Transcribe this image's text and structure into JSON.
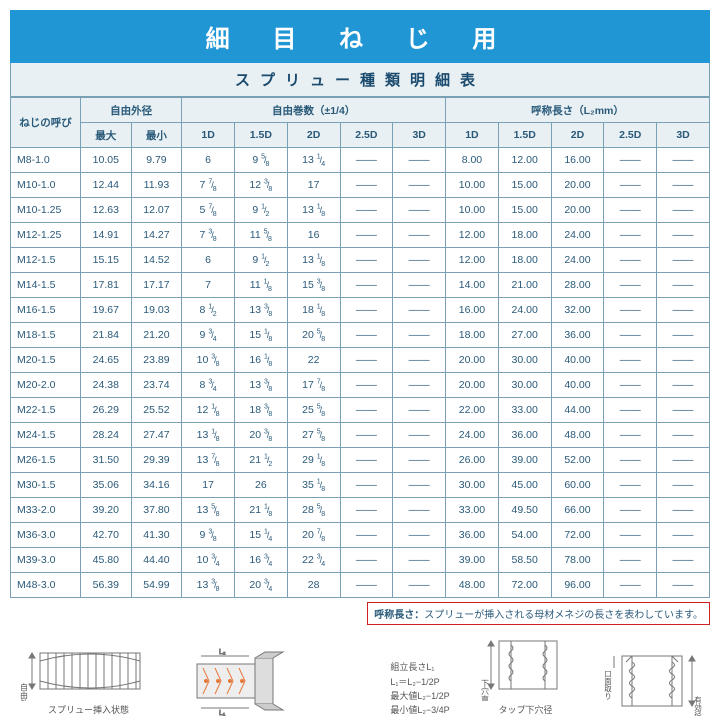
{
  "title": "細 目 ね じ 用",
  "subtitle": "スプリュー種類明細表",
  "headers": {
    "thread_name": "ねじの呼び",
    "free_od": "自由外径",
    "free_od_max": "最大",
    "free_od_min": "最小",
    "free_turns": "自由巻数（±1/4）",
    "nominal_len": "呼称長さ（L₂mm）",
    "d_labels": [
      "1D",
      "1.5D",
      "2D",
      "2.5D",
      "3D"
    ]
  },
  "rows": [
    {
      "name": "M8-1.0",
      "odmax": "10.05",
      "odmin": "9.79",
      "turns": [
        "6",
        "9 5/8",
        "13 1/4",
        "—",
        "—"
      ],
      "len": [
        "8.00",
        "12.00",
        "16.00",
        "—",
        "—"
      ]
    },
    {
      "name": "M10-1.0",
      "odmax": "12.44",
      "odmin": "11.93",
      "turns": [
        "7 7/8",
        "12 3/8",
        "17",
        "—",
        "—"
      ],
      "len": [
        "10.00",
        "15.00",
        "20.00",
        "—",
        "—"
      ]
    },
    {
      "name": "M10-1.25",
      "odmax": "12.63",
      "odmin": "12.07",
      "turns": [
        "5 7/8",
        "9 1/2",
        "13 1/8",
        "—",
        "—"
      ],
      "len": [
        "10.00",
        "15.00",
        "20.00",
        "—",
        "—"
      ]
    },
    {
      "name": "M12-1.25",
      "odmax": "14.91",
      "odmin": "14.27",
      "turns": [
        "7 3/8",
        "11 5/8",
        "16",
        "—",
        "—"
      ],
      "len": [
        "12.00",
        "18.00",
        "24.00",
        "—",
        "—"
      ]
    },
    {
      "name": "M12-1.5",
      "odmax": "15.15",
      "odmin": "14.52",
      "turns": [
        "6",
        "9 1/2",
        "13 1/8",
        "—",
        "—"
      ],
      "len": [
        "12.00",
        "18.00",
        "24.00",
        "—",
        "—"
      ]
    },
    {
      "name": "M14-1.5",
      "odmax": "17.81",
      "odmin": "17.17",
      "turns": [
        "7",
        "11 1/8",
        "15 3/8",
        "—",
        "—"
      ],
      "len": [
        "14.00",
        "21.00",
        "28.00",
        "—",
        "—"
      ]
    },
    {
      "name": "M16-1.5",
      "odmax": "19.67",
      "odmin": "19.03",
      "turns": [
        "8 1/2",
        "13 3/8",
        "18 1/8",
        "—",
        "—"
      ],
      "len": [
        "16.00",
        "24.00",
        "32.00",
        "—",
        "—"
      ]
    },
    {
      "name": "M18-1.5",
      "odmax": "21.84",
      "odmin": "21.20",
      "turns": [
        "9 3/4",
        "15 1/8",
        "20 5/8",
        "—",
        "—"
      ],
      "len": [
        "18.00",
        "27.00",
        "36.00",
        "—",
        "—"
      ]
    },
    {
      "name": "M20-1.5",
      "odmax": "24.65",
      "odmin": "23.89",
      "turns": [
        "10 3/8",
        "16 1/8",
        "22",
        "—",
        "—"
      ],
      "len": [
        "20.00",
        "30.00",
        "40.00",
        "—",
        "—"
      ]
    },
    {
      "name": "M20-2.0",
      "odmax": "24.38",
      "odmin": "23.74",
      "turns": [
        "8 3/4",
        "13 3/8",
        "17 7/8",
        "—",
        "—"
      ],
      "len": [
        "20.00",
        "30.00",
        "40.00",
        "—",
        "—"
      ]
    },
    {
      "name": "M22-1.5",
      "odmax": "26.29",
      "odmin": "25.52",
      "turns": [
        "12 1/8",
        "18 3/8",
        "25 5/8",
        "—",
        "—"
      ],
      "len": [
        "22.00",
        "33.00",
        "44.00",
        "—",
        "—"
      ]
    },
    {
      "name": "M24-1.5",
      "odmax": "28.24",
      "odmin": "27.47",
      "turns": [
        "13 1/8",
        "20 3/8",
        "27 5/8",
        "—",
        "—"
      ],
      "len": [
        "24.00",
        "36.00",
        "48.00",
        "—",
        "—"
      ]
    },
    {
      "name": "M26-1.5",
      "odmax": "31.50",
      "odmin": "29.39",
      "turns": [
        "13 7/8",
        "21 1/2",
        "29 1/8",
        "—",
        "—"
      ],
      "len": [
        "26.00",
        "39.00",
        "52.00",
        "—",
        "—"
      ]
    },
    {
      "name": "M30-1.5",
      "odmax": "35.06",
      "odmin": "34.16",
      "turns": [
        "17",
        "26",
        "35 1/8",
        "—",
        "—"
      ],
      "len": [
        "30.00",
        "45.00",
        "60.00",
        "—",
        "—"
      ]
    },
    {
      "name": "M33-2.0",
      "odmax": "39.20",
      "odmin": "37.80",
      "turns": [
        "13 5/8",
        "21 1/8",
        "28 5/8",
        "—",
        "—"
      ],
      "len": [
        "33.00",
        "49.50",
        "66.00",
        "—",
        "—"
      ]
    },
    {
      "name": "M36-3.0",
      "odmax": "42.70",
      "odmin": "41.30",
      "turns": [
        "9 3/8",
        "15 1/4",
        "20 7/8",
        "—",
        "—"
      ],
      "len": [
        "36.00",
        "54.00",
        "72.00",
        "—",
        "—"
      ]
    },
    {
      "name": "M39-3.0",
      "odmax": "45.80",
      "odmin": "44.40",
      "turns": [
        "10 3/4",
        "16 3/4",
        "22 3/4",
        "—",
        "—"
      ],
      "len": [
        "39.00",
        "58.50",
        "78.00",
        "—",
        "—"
      ]
    },
    {
      "name": "M48-3.0",
      "odmax": "56.39",
      "odmin": "54.99",
      "turns": [
        "13 3/8",
        "20 3/4",
        "28",
        "—",
        "—"
      ],
      "len": [
        "48.00",
        "72.00",
        "96.00",
        "—",
        "—"
      ]
    }
  ],
  "note": {
    "label": "呼称長さ：",
    "text": "スプリューが挿入される母材メネジの長さを表わしています。"
  },
  "diagrams": {
    "d1_side_label": "自由外径",
    "d1_caption": "スプリュー挿入状態",
    "d2_formula": [
      "組立長さL₁",
      "L₁＝L₂−1/2P",
      "最大値L₂−1/2P",
      "最小値L₂−3/4P"
    ],
    "d3_side_label": "下穴直径",
    "d3_caption": "タップ下穴径",
    "d4_side_labels": [
      "口面取り",
      "有効径(D)"
    ]
  },
  "style": {
    "title_bg": "#2196d5",
    "header_bg": "#e8f0f3",
    "text_color": "#2a5a7a",
    "border_color": "#7aa0b5",
    "note_border": "#d02020"
  }
}
